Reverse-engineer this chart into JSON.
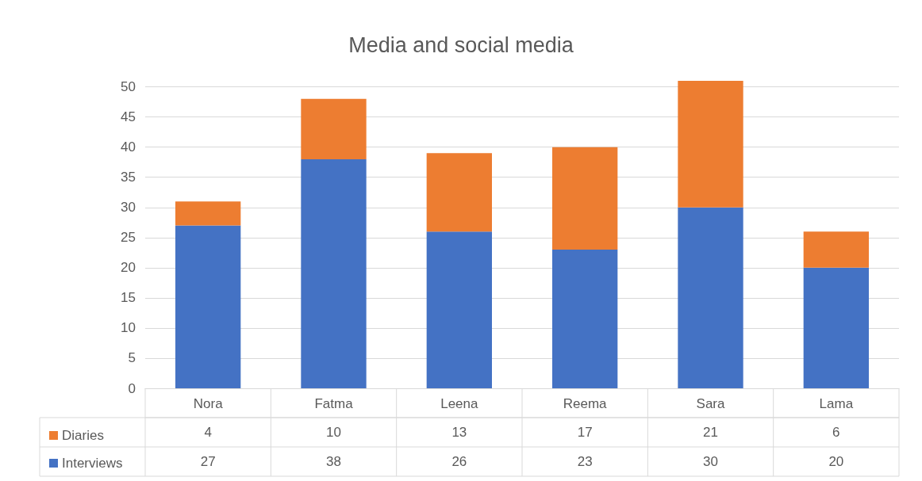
{
  "chart_data": {
    "type": "bar",
    "title": "Media and social media",
    "categories": [
      "Nora",
      "Fatma",
      "Leena",
      "Reema",
      "Sara",
      "Lama"
    ],
    "stacked": true,
    "series": [
      {
        "name": "Interviews",
        "color": "#4472c4",
        "values": [
          27,
          38,
          26,
          23,
          30,
          20
        ]
      },
      {
        "name": "Diaries",
        "color": "#ed7d31",
        "values": [
          4,
          10,
          13,
          17,
          21,
          6
        ]
      }
    ],
    "ylim": [
      0,
      51
    ],
    "yticks": [
      0,
      5,
      10,
      15,
      20,
      25,
      30,
      35,
      40,
      45,
      50
    ],
    "grid": "y",
    "legend": "bottom left",
    "data_labels": true
  }
}
